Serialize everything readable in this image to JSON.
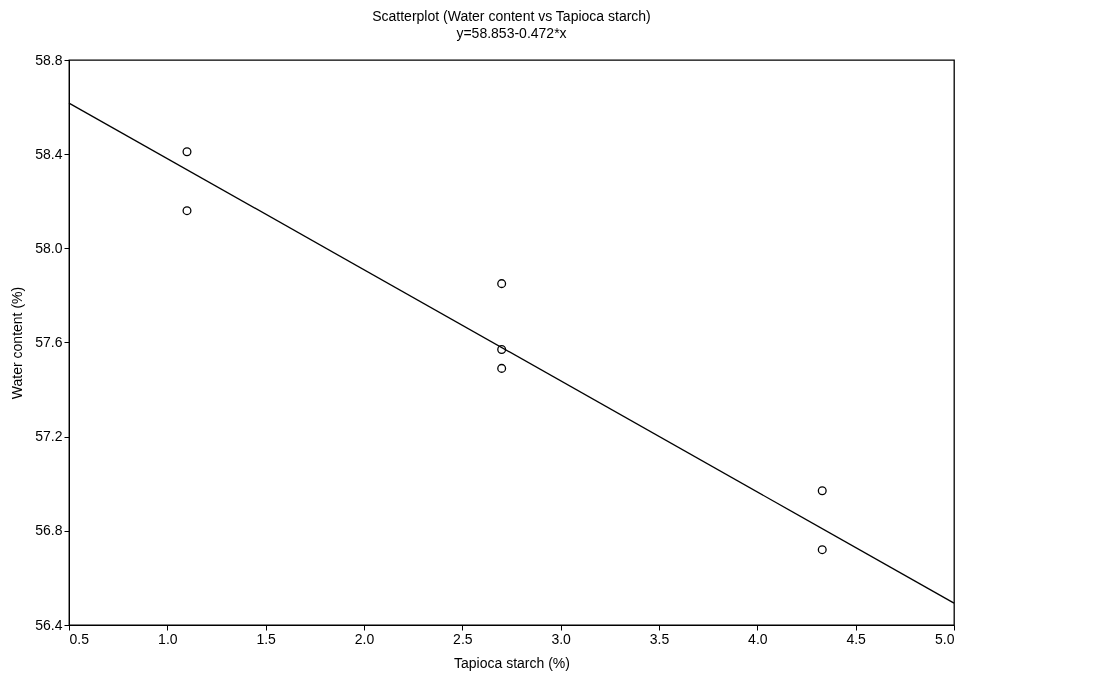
{
  "chart_data": {
    "type": "scatter",
    "title": "Scatterplot (Water content vs Tapioca starch)",
    "subtitle": "y=58.853-0.472*x",
    "xlabel": "Tapioca starch (%)",
    "ylabel": "Water content (%)",
    "series": [
      {
        "color": "#000000",
        "marker": "circle",
        "x": [
          1.1,
          1.1,
          2.7,
          2.7,
          2.7,
          4.33,
          4.33
        ],
        "values": [
          58.41,
          58.16,
          57.85,
          57.57,
          57.49,
          56.97,
          56.72
        ]
      },
      {
        "type": "line",
        "color": "#000000",
        "line_style": "solid",
        "x": [
          0.5,
          5.0
        ],
        "values": [
          58.617,
          56.493
        ]
      }
    ],
    "xlim": [
      0.5,
      5.0
    ],
    "ylim": [
      56.4,
      58.8
    ],
    "xticks": [
      0.5,
      {
        "value": 1,
        "label": "1.0"
      },
      1.5,
      {
        "value": 2,
        "label": "2.0"
      },
      2.5,
      {
        "value": 3,
        "label": "3.0"
      },
      3.5,
      {
        "value": 4,
        "label": "4.0"
      },
      4.5,
      {
        "value": 5,
        "label": "5.0"
      }
    ],
    "yticks": [
      56.4,
      56.8,
      57.2,
      57.6,
      {
        "value": 58,
        "label": "58.0"
      },
      58.4,
      58.8
    ],
    "grid": false
  }
}
